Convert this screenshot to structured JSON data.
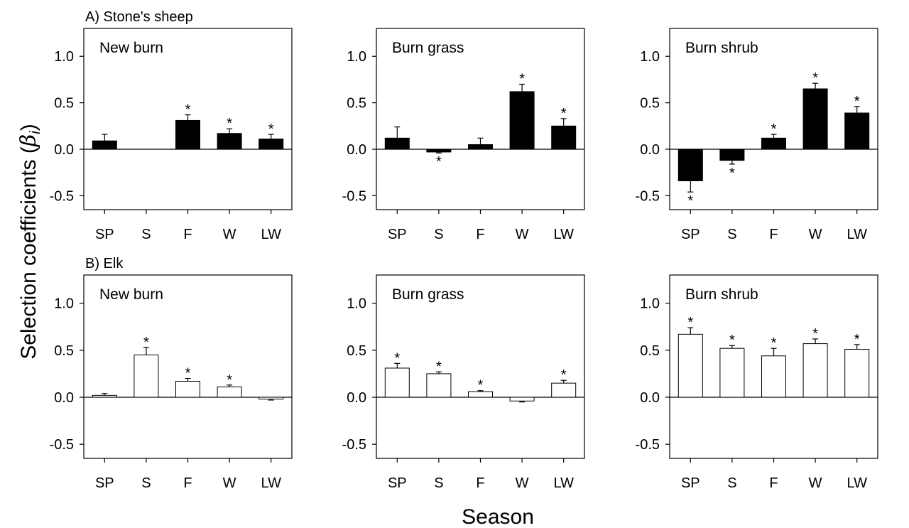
{
  "figure": {
    "ylabel_main": "Selection coefficients (",
    "ylabel_beta": "β",
    "ylabel_sub": "i",
    "ylabel_close": ")",
    "xlabel": "Season",
    "row_titles": [
      "A) Stone's sheep",
      "B) Elk"
    ]
  },
  "chart_data": [
    {
      "type": "bar",
      "row": "A) Stone's sheep",
      "title": "New burn",
      "categories": [
        "SP",
        "S",
        "F",
        "W",
        "LW"
      ],
      "values": [
        0.09,
        null,
        0.31,
        0.17,
        0.11
      ],
      "errors": [
        0.07,
        null,
        0.06,
        0.05,
        0.05
      ],
      "significant": [
        false,
        false,
        true,
        true,
        true
      ],
      "ylim": [
        -0.65,
        1.3
      ],
      "yticks": [
        -0.5,
        0.0,
        0.5,
        1.0
      ],
      "ytick_labels": [
        "-0.5",
        "0.0",
        "0.5",
        "1.0"
      ],
      "bar_color": "#000000"
    },
    {
      "type": "bar",
      "row": "A) Stone's sheep",
      "title": "Burn grass",
      "categories": [
        "SP",
        "S",
        "F",
        "W",
        "LW"
      ],
      "values": [
        0.12,
        -0.03,
        0.05,
        0.62,
        0.25
      ],
      "errors": [
        0.12,
        0.01,
        0.07,
        0.08,
        0.08
      ],
      "significant": [
        false,
        true,
        false,
        true,
        true
      ],
      "ylim": [
        -0.65,
        1.3
      ],
      "yticks": [
        -0.5,
        0.0,
        0.5,
        1.0
      ],
      "ytick_labels": [
        "-0.5",
        "0.0",
        "0.5",
        "1.0"
      ],
      "bar_color": "#000000"
    },
    {
      "type": "bar",
      "row": "A) Stone's sheep",
      "title": "Burn shrub",
      "categories": [
        "SP",
        "S",
        "F",
        "W",
        "LW"
      ],
      "values": [
        -0.34,
        -0.12,
        0.12,
        0.65,
        0.39
      ],
      "errors": [
        0.12,
        0.04,
        0.04,
        0.06,
        0.07
      ],
      "significant": [
        true,
        true,
        true,
        true,
        true
      ],
      "ylim": [
        -0.65,
        1.3
      ],
      "yticks": [
        -0.5,
        0.0,
        0.5,
        1.0
      ],
      "ytick_labels": [
        "-0.5",
        "0.0",
        "0.5",
        "1.0"
      ],
      "bar_color": "#000000"
    },
    {
      "type": "bar",
      "row": "B) Elk",
      "title": "New burn",
      "categories": [
        "SP",
        "S",
        "F",
        "W",
        "LW"
      ],
      "values": [
        0.02,
        0.45,
        0.17,
        0.11,
        -0.02
      ],
      "errors": [
        0.02,
        0.08,
        0.03,
        0.02,
        0.01
      ],
      "significant": [
        false,
        true,
        true,
        true,
        false
      ],
      "ylim": [
        -0.65,
        1.3
      ],
      "yticks": [
        -0.5,
        0.0,
        0.5,
        1.0
      ],
      "ytick_labels": [
        "-0.5",
        "0.0",
        "0.5",
        "1.0"
      ],
      "bar_color": "#ffffff"
    },
    {
      "type": "bar",
      "row": "B) Elk",
      "title": "Burn grass",
      "categories": [
        "SP",
        "S",
        "F",
        "W",
        "LW"
      ],
      "values": [
        0.31,
        0.25,
        0.06,
        -0.04,
        0.15
      ],
      "errors": [
        0.05,
        0.02,
        0.01,
        0.01,
        0.03
      ],
      "significant": [
        true,
        true,
        true,
        false,
        true
      ],
      "ylim": [
        -0.65,
        1.3
      ],
      "yticks": [
        -0.5,
        0.0,
        0.5,
        1.0
      ],
      "ytick_labels": [
        "-0.5",
        "0.0",
        "0.5",
        "1.0"
      ],
      "bar_color": "#ffffff"
    },
    {
      "type": "bar",
      "row": "B) Elk",
      "title": "Burn shrub",
      "categories": [
        "SP",
        "S",
        "F",
        "W",
        "LW"
      ],
      "values": [
        0.67,
        0.52,
        0.44,
        0.57,
        0.51
      ],
      "errors": [
        0.07,
        0.03,
        0.08,
        0.05,
        0.05
      ],
      "significant": [
        true,
        true,
        true,
        true,
        true
      ],
      "ylim": [
        -0.65,
        1.3
      ],
      "yticks": [
        -0.5,
        0.0,
        0.5,
        1.0
      ],
      "ytick_labels": [
        "-0.5",
        "0.0",
        "0.5",
        "1.0"
      ],
      "bar_color": "#ffffff"
    }
  ]
}
